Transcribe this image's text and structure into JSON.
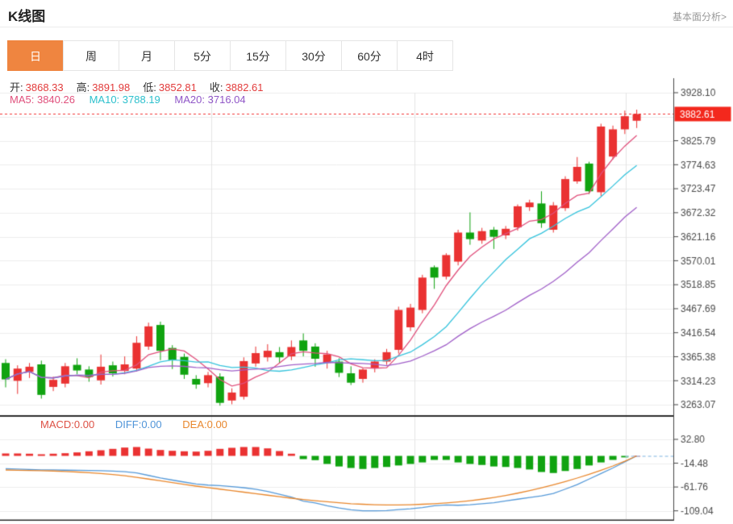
{
  "header": {
    "title": "K线图",
    "link": "基本面分析>"
  },
  "tabs": {
    "items": [
      "日",
      "周",
      "月",
      "5分",
      "15分",
      "30分",
      "60分",
      "4时"
    ],
    "active_index": 0
  },
  "ohlc": {
    "open_label": "开:",
    "open": "3868.33",
    "high_label": "高:",
    "high": "3891.98",
    "low_label": "低:",
    "low": "3852.81",
    "close_label": "收:",
    "close": "3882.61"
  },
  "ma": {
    "ma5_label": "MA5:",
    "ma5": "3840.26",
    "ma10_label": "MA10:",
    "ma10": "3788.19",
    "ma20_label": "MA20:",
    "ma20": "3716.04"
  },
  "macd_legend": {
    "macd_label": "MACD:",
    "macd_value": "0.00",
    "diff_label": "DIFF:",
    "diff_value": "0.00",
    "dea_label": "DEA:",
    "dea_value": "0.00"
  },
  "price_axis": {
    "current": "3882.61",
    "ticks": [
      "3928.10",
      "3825.79",
      "3774.63",
      "3723.47",
      "3672.32",
      "3621.16",
      "3570.01",
      "3518.85",
      "3467.69",
      "3416.54",
      "3365.38",
      "3314.23",
      "3263.07"
    ],
    "hidden_gridline": 3876.95
  },
  "macd_axis": {
    "ticks": [
      "32.80",
      "-14.48",
      "-61.76",
      "-109.04"
    ]
  },
  "colors": {
    "up": "#ea3232",
    "down": "#10a310",
    "ma5": "#e0507c",
    "ma10": "#35c3dc",
    "ma20": "#a05fc8",
    "diff": "#5599d8",
    "dea": "#e8872d",
    "current_line": "#f23030",
    "badge": "#f3281d",
    "grid": "#ececec",
    "vgrid": "#e4e4e4",
    "axis": "#444",
    "label": "#4a4a4a",
    "zero_dash": "#a8cdea",
    "tab_active": "#ef8540"
  },
  "chart_data": {
    "type": "candlestick+macd",
    "title": "K线图 (日)",
    "price_axis_range": [
      3263.07,
      3928.1
    ],
    "macd_axis_range": [
      -109.04,
      32.8
    ],
    "current_price": 3882.61,
    "ma_periods": [
      5,
      10,
      20
    ],
    "ma_last_values": {
      "MA5": 3840.26,
      "MA10": 3788.19,
      "MA20": 3716.04
    },
    "last_candle": {
      "open": 3868.33,
      "high": 3891.98,
      "low": 3852.81,
      "close": 3882.61
    },
    "candles": [
      [
        3352,
        3360,
        3300,
        3317
      ],
      [
        3314,
        3347,
        3286,
        3340
      ],
      [
        3333,
        3352,
        3320,
        3344
      ],
      [
        3349,
        3357,
        3276,
        3284
      ],
      [
        3301,
        3323,
        3292,
        3316
      ],
      [
        3308,
        3352,
        3300,
        3345
      ],
      [
        3348,
        3362,
        3328,
        3336
      ],
      [
        3338,
        3345,
        3312,
        3322
      ],
      [
        3315,
        3370,
        3306,
        3344
      ],
      [
        3347,
        3355,
        3323,
        3330
      ],
      [
        3335,
        3366,
        3328,
        3349
      ],
      [
        3340,
        3409,
        3334,
        3395
      ],
      [
        3387,
        3438,
        3380,
        3430
      ],
      [
        3433,
        3440,
        3358,
        3378
      ],
      [
        3384,
        3390,
        3339,
        3358
      ],
      [
        3365,
        3372,
        3318,
        3327
      ],
      [
        3318,
        3326,
        3297,
        3306
      ],
      [
        3309,
        3333,
        3300,
        3326
      ],
      [
        3323,
        3330,
        3261,
        3267
      ],
      [
        3272,
        3298,
        3264,
        3289
      ],
      [
        3280,
        3364,
        3274,
        3356
      ],
      [
        3351,
        3387,
        3344,
        3373
      ],
      [
        3364,
        3392,
        3355,
        3378
      ],
      [
        3375,
        3386,
        3352,
        3364
      ],
      [
        3366,
        3400,
        3358,
        3386
      ],
      [
        3400,
        3415,
        3366,
        3378
      ],
      [
        3387,
        3394,
        3344,
        3361
      ],
      [
        3352,
        3378,
        3340,
        3370
      ],
      [
        3355,
        3362,
        3322,
        3331
      ],
      [
        3330,
        3345,
        3305,
        3310
      ],
      [
        3318,
        3341,
        3310,
        3338
      ],
      [
        3342,
        3360,
        3332,
        3355
      ],
      [
        3355,
        3382,
        3348,
        3375
      ],
      [
        3380,
        3472,
        3372,
        3465
      ],
      [
        3428,
        3478,
        3420,
        3470
      ],
      [
        3465,
        3540,
        3458,
        3534
      ],
      [
        3556,
        3560,
        3510,
        3534
      ],
      [
        3536,
        3586,
        3530,
        3582
      ],
      [
        3568,
        3636,
        3560,
        3630
      ],
      [
        3630,
        3673,
        3604,
        3616
      ],
      [
        3613,
        3640,
        3606,
        3633
      ],
      [
        3636,
        3642,
        3595,
        3621
      ],
      [
        3624,
        3644,
        3616,
        3638
      ],
      [
        3641,
        3690,
        3634,
        3686
      ],
      [
        3684,
        3700,
        3676,
        3694
      ],
      [
        3692,
        3718,
        3640,
        3650
      ],
      [
        3636,
        3695,
        3630,
        3688
      ],
      [
        3682,
        3750,
        3676,
        3744
      ],
      [
        3739,
        3791,
        3734,
        3770
      ],
      [
        3777,
        3781,
        3712,
        3718
      ],
      [
        3716,
        3862,
        3708,
        3856
      ],
      [
        3792,
        3858,
        3786,
        3850
      ],
      [
        3850,
        3890,
        3840,
        3878
      ],
      [
        3868.33,
        3891.98,
        3852.81,
        3882.61
      ]
    ],
    "macd": {
      "hist": [
        4.8,
        4.8,
        4.3,
        3.2,
        4.3,
        5.3,
        6.9,
        9.1,
        11.2,
        13.9,
        16.5,
        17.6,
        14.4,
        11.7,
        10.1,
        9.1,
        8.5,
        10.1,
        13.9,
        16.0,
        17.6,
        17.6,
        14.9,
        9.6,
        4.3,
        -6.4,
        -8.5,
        -16.0,
        -21.0,
        -24.0,
        -26.0,
        -24.0,
        -22.0,
        -19.0,
        -16.0,
        -13.0,
        -8.0,
        -8.0,
        -13.0,
        -16.0,
        -18.0,
        -21.0,
        -22.0,
        -24.0,
        -27.0,
        -32.0,
        -34.0,
        -30.0,
        -26.0,
        -19.0,
        -13.0,
        -8.0,
        -3.0,
        0.0
      ],
      "diff": [
        -25.6,
        -26.1,
        -26.9,
        -27.9,
        -27.9,
        -28.4,
        -28.6,
        -29.0,
        -29.4,
        -30.1,
        -31.3,
        -33.7,
        -38.8,
        -43.7,
        -48.0,
        -52.0,
        -55.8,
        -58.0,
        -59.1,
        -61.0,
        -63.2,
        -66.2,
        -70.6,
        -76.2,
        -81.9,
        -89.7,
        -93.3,
        -99.0,
        -103.5,
        -107.0,
        -109.0,
        -109.0,
        -108.5,
        -106.5,
        -105.0,
        -102.5,
        -99.0,
        -97.5,
        -98.0,
        -97.0,
        -95.0,
        -93.0,
        -89.5,
        -86.0,
        -82.5,
        -79.5,
        -74.5,
        -66.0,
        -57.0,
        -46.0,
        -35.0,
        -24.0,
        -12.0,
        0.0
      ],
      "dea": [
        -28.0,
        -28.5,
        -29.0,
        -29.5,
        -30.0,
        -31.0,
        -32.0,
        -33.5,
        -35.0,
        -37.0,
        -39.5,
        -42.5,
        -46.0,
        -49.5,
        -53.0,
        -56.5,
        -60.0,
        -63.0,
        -66.0,
        -69.0,
        -72.0,
        -75.0,
        -78.0,
        -81.0,
        -84.0,
        -86.5,
        -89.0,
        -91.0,
        -93.0,
        -95.0,
        -96.0,
        -97.0,
        -97.5,
        -97.5,
        -97.0,
        -96.0,
        -95.0,
        -93.5,
        -91.5,
        -89.0,
        -86.0,
        -82.5,
        -78.5,
        -74.0,
        -69.0,
        -63.5,
        -57.5,
        -51.0,
        -44.0,
        -36.5,
        -28.5,
        -20.0,
        -10.5,
        0.0
      ]
    }
  }
}
